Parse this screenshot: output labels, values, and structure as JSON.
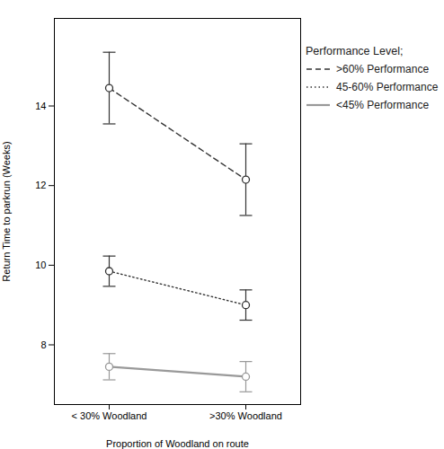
{
  "chart_data": {
    "type": "line",
    "xlabel": "Proportion of Woodland on route",
    "ylabel": "Return Time to parkrun (Weeks)",
    "categories": [
      "< 30% Woodland",
      ">30% Woodland"
    ],
    "series": [
      {
        "name": ">60% Performance",
        "color": "#333333",
        "line_style": "dashed",
        "marker": "circle",
        "values": [
          14.45,
          12.15
        ],
        "errors": [
          0.9,
          0.9
        ]
      },
      {
        "name": "45-60% Performance",
        "color": "#333333",
        "line_style": "dotted",
        "marker": "circle",
        "values": [
          9.85,
          9.0
        ],
        "errors": [
          0.38,
          0.38
        ]
      },
      {
        "name": "<45% Performance",
        "color": "#999999",
        "line_style": "solid",
        "marker": "circle",
        "values": [
          7.45,
          7.2
        ],
        "errors": [
          0.33,
          0.38
        ]
      }
    ],
    "ylim": [
      6.5,
      16.2
    ],
    "yticks": [
      8,
      10,
      12,
      14
    ],
    "grid": false,
    "legend": "upper right",
    "legend_title": "Performance Level;"
  }
}
